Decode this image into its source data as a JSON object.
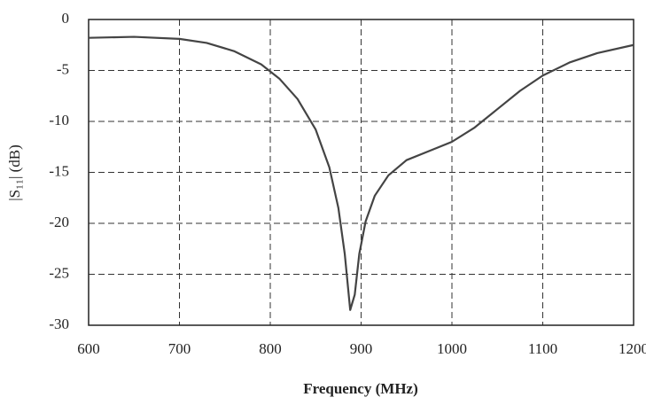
{
  "chart_data": {
    "type": "line",
    "x_label": "Frequency (MHz)",
    "y_label": "|S₁₁| (dB)",
    "x": [
      600,
      650,
      700,
      730,
      760,
      790,
      810,
      830,
      850,
      865,
      875,
      882,
      888,
      893,
      898,
      905,
      915,
      930,
      950,
      975,
      1000,
      1025,
      1050,
      1075,
      1100,
      1130,
      1160,
      1200
    ],
    "series": [
      {
        "name": "S11",
        "color": "#444444",
        "values": [
          -1.8,
          -1.7,
          -1.9,
          -2.3,
          -3.1,
          -4.4,
          -5.8,
          -7.8,
          -10.8,
          -14.5,
          -18.5,
          -23,
          -28.5,
          -27,
          -23,
          -19.8,
          -17.3,
          -15.3,
          -13.8,
          -12.9,
          -12,
          -10.6,
          -8.8,
          -7,
          -5.5,
          -4.2,
          -3.3,
          -2.5
        ]
      }
    ],
    "xlim": [
      600,
      1200
    ],
    "xticks": [
      600,
      700,
      800,
      900,
      1000,
      1100,
      1200
    ],
    "ylim": [
      -30,
      0
    ],
    "yticks": [
      0,
      -5,
      -10,
      -15,
      -20,
      -25,
      -30
    ],
    "grid": true
  }
}
